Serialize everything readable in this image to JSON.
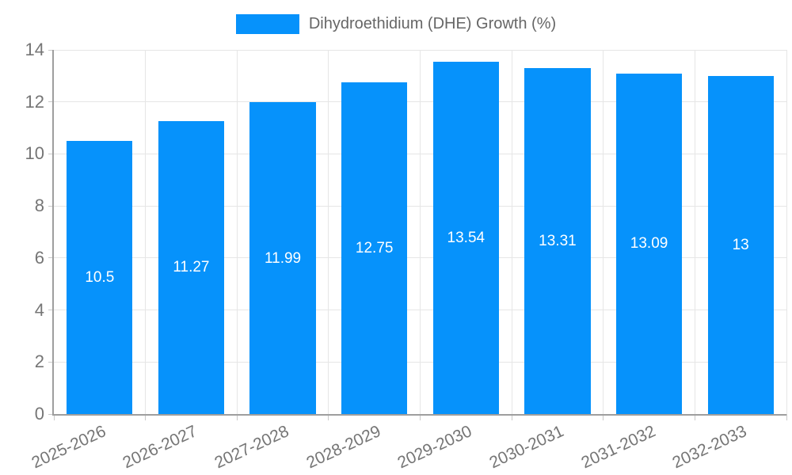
{
  "legend": {
    "label": "Dihydroethidium (DHE) Growth (%)",
    "position": "top"
  },
  "colors": {
    "bar": "#0692fb",
    "bar_value_text": "#ffffff",
    "grid": "#e6e6e6",
    "axis": "#9e9e9e",
    "tick_mark": "#c9c9c9",
    "tick_text": "#757575",
    "legend_text": "#666666",
    "background": "#ffffff"
  },
  "chart_data": {
    "type": "bar",
    "title": "",
    "series_name": "Dihydroethidium (DHE) Growth (%)",
    "categories": [
      "2025-2026",
      "2026-2027",
      "2027-2028",
      "2028-2029",
      "2029-2030",
      "2030-2031",
      "2031-2032",
      "2032-2033"
    ],
    "values": [
      10.5,
      11.27,
      11.99,
      12.75,
      13.54,
      13.31,
      13.09,
      13
    ],
    "value_labels": [
      "10.5",
      "11.27",
      "11.99",
      "12.75",
      "13.54",
      "13.31",
      "13.09",
      "13"
    ],
    "xlabel": "",
    "ylabel": "",
    "ylim": [
      0,
      14
    ],
    "yticks": [
      0,
      2,
      4,
      6,
      8,
      10,
      12,
      14
    ],
    "ytick_labels": [
      "0",
      "2",
      "4",
      "6",
      "8",
      "10",
      "12",
      "14"
    ],
    "grid": true,
    "legend_position": "top",
    "x_tick_rotation_deg": -25,
    "value_label_placement": "center-of-bar"
  }
}
